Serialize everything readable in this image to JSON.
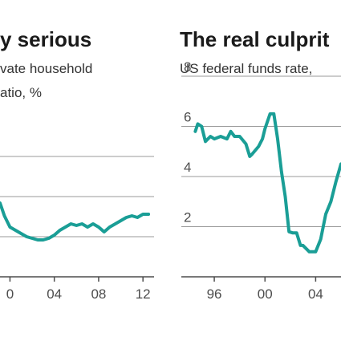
{
  "chart_data": [
    {
      "type": "line",
      "title": "y serious",
      "subtitle_lines": [
        "vate household",
        "atio, %"
      ],
      "xlabel": "",
      "ylabel": "",
      "x_tick_labels": [
        "0",
        "04",
        "08",
        "12"
      ],
      "x_ticks": [
        2000,
        2004,
        2008,
        2012
      ],
      "xlim": [
        1999.1,
        2013
      ],
      "y_tick_labels": [],
      "gridlines_y": [
        125,
        150,
        175
      ],
      "ylim": [
        100,
        200
      ],
      "grid": true,
      "color": "#1a9e96",
      "series": [
        {
          "x": [
            1999.1,
            1999.5,
            2000.0,
            2000.5,
            2001.0,
            2001.5,
            2002.0,
            2002.5,
            2003.0,
            2003.5,
            2004.0,
            2004.5,
            2005.0,
            2005.5,
            2006.0,
            2006.5,
            2007.0,
            2007.5,
            2008.0,
            2008.5,
            2009.0,
            2009.5,
            2010.0,
            2010.5,
            2011.0,
            2011.5,
            2012.0,
            2012.5
          ],
          "y": [
            146,
            138,
            131,
            129,
            127,
            125,
            124,
            123,
            123,
            124,
            126,
            129,
            131,
            133,
            132,
            133,
            131,
            133,
            131,
            128,
            131,
            133,
            135,
            137,
            138,
            137,
            139,
            139
          ]
        }
      ]
    },
    {
      "type": "line",
      "title": "The real culprit",
      "subtitle_lines": [
        "US federal funds rate,"
      ],
      "xlabel": "",
      "ylabel": "",
      "x_tick_labels": [
        "96",
        "00",
        "04"
      ],
      "x_ticks": [
        1996,
        2000,
        2004
      ],
      "xlim": [
        1993.4,
        2006
      ],
      "y_tick_labels": [
        "2",
        "4",
        "6",
        "8"
      ],
      "y_ticks": [
        2,
        4,
        6,
        8
      ],
      "ylim": [
        0,
        8
      ],
      "grid": true,
      "color": "#1a9e96",
      "series": [
        {
          "x": [
            1994.5,
            1994.7,
            1995.0,
            1995.3,
            1995.7,
            1996.0,
            1996.5,
            1997.0,
            1997.3,
            1997.6,
            1998.0,
            1998.5,
            1998.8,
            1999.0,
            1999.5,
            1999.8,
            2000.0,
            2000.4,
            2000.7,
            2001.0,
            2001.3,
            2001.6,
            2001.9,
            2002.2,
            2002.5,
            2002.8,
            2003.0,
            2003.5,
            2004.0,
            2004.4,
            2004.8,
            2005.2,
            2005.6,
            2006.0
          ],
          "y": [
            5.8,
            6.1,
            6.0,
            5.4,
            5.6,
            5.5,
            5.6,
            5.5,
            5.8,
            5.6,
            5.6,
            5.3,
            4.8,
            4.9,
            5.2,
            5.5,
            5.9,
            6.5,
            6.5,
            5.5,
            4.2,
            3.2,
            1.8,
            1.75,
            1.75,
            1.25,
            1.25,
            1.0,
            1.0,
            1.5,
            2.5,
            3.0,
            3.8,
            4.5
          ]
        }
      ]
    }
  ]
}
